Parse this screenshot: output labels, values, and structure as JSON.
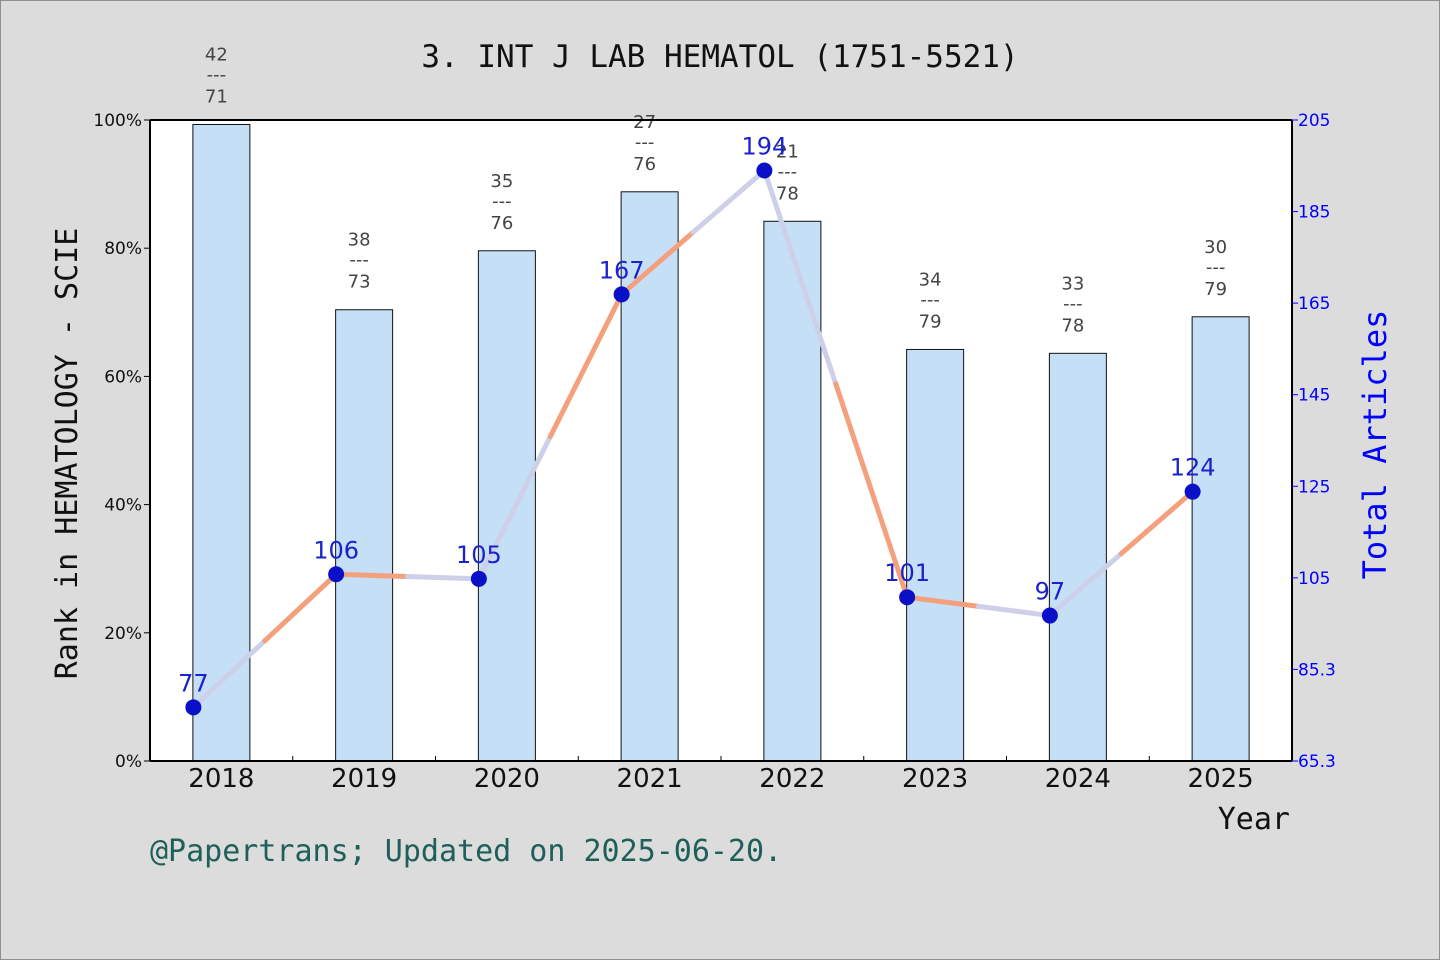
{
  "chart_data": {
    "type": "bar",
    "title": "3. INT J LAB HEMATOL (1751-5521)",
    "xlabel": "Year",
    "ylabel": "Rank in HEMATOLOGY - SCIE",
    "y2label": "Total Articles",
    "categories": [
      "2018",
      "2019",
      "2020",
      "2021",
      "2022",
      "2023",
      "2024",
      "2025"
    ],
    "ylim": [
      0,
      100
    ],
    "yticks": [
      "0%",
      "20%",
      "40%",
      "60%",
      "80%",
      "100%"
    ],
    "y2lim": [
      65.3,
      205
    ],
    "y2ticks": [
      "65.3",
      "85.3",
      "105",
      "125",
      "145",
      "165",
      "185",
      "205"
    ],
    "grid": false,
    "series": [
      {
        "kind": "bar",
        "axis": "left",
        "values": [
          99.3,
          70.4,
          79.6,
          88.8,
          84.2,
          64.2,
          63.6,
          69.3
        ],
        "ranks": [
          "42",
          "38",
          "35",
          "27",
          "21",
          "34",
          "33",
          "30"
        ],
        "totals": [
          "71",
          "73",
          "76",
          "76",
          "78",
          "79",
          "78",
          "79"
        ],
        "separator": "---"
      },
      {
        "kind": "line",
        "axis": "right",
        "values": [
          77,
          106,
          105,
          167,
          194,
          101,
          97,
          124
        ],
        "labels": [
          "77",
          "106",
          "105",
          "167",
          "194",
          "101",
          "97",
          "124"
        ]
      }
    ],
    "colors": {
      "bar_fill": "#c5dff7",
      "bar_stroke": "#111111",
      "line_orange": "#f4a07c",
      "line_lavender": "#cdd0e8",
      "marker": "#0a10c8",
      "right_axis": "#0000ff",
      "label_blue": "#1a22cc"
    }
  },
  "footer": "@Papertrans; Updated on 2025-06-20."
}
